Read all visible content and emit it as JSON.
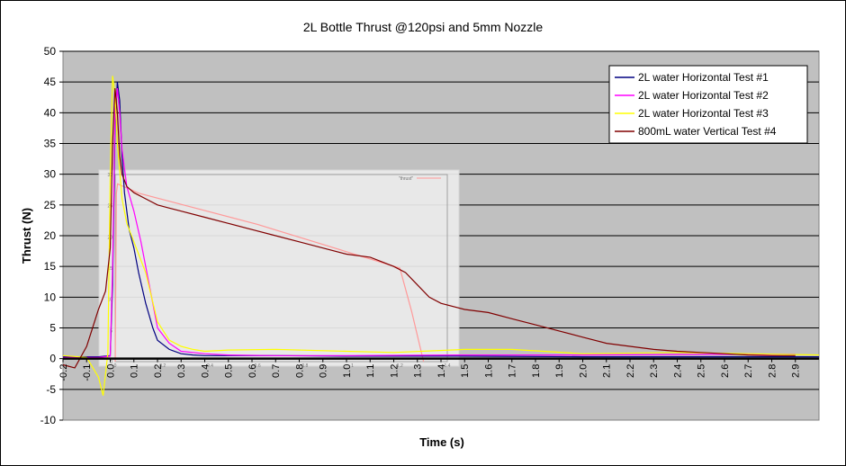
{
  "chart_data": {
    "type": "line",
    "title": "2L Bottle Thrust @120psi and 5mm Nozzle",
    "xlabel": "Time (s)",
    "ylabel": "Thrust (N)",
    "xlim": [
      -0.2,
      3.0
    ],
    "ylim": [
      -10,
      50
    ],
    "x_ticks": [
      -0.2,
      -0.1,
      0.0,
      0.1,
      0.2,
      0.3,
      0.4,
      0.5,
      0.6,
      0.7,
      0.8,
      0.9,
      1.0,
      1.1,
      1.2,
      1.3,
      1.4,
      1.5,
      1.6,
      1.7,
      1.8,
      1.9,
      2.0,
      2.1,
      2.2,
      2.3,
      2.4,
      2.5,
      2.6,
      2.7,
      2.8,
      2.9
    ],
    "x_tick_labels": [
      "-0.2",
      "-0.1",
      "0.0",
      "0.1",
      "0.2",
      "0.3",
      "0.4",
      "0.5",
      "0.6",
      "0.7",
      "0.8",
      "0.9",
      "1.0",
      "1.1",
      "1.2",
      "1.3",
      "1.4",
      "1.5",
      "1.6",
      "1.7",
      "1.8",
      "1.9",
      "2.0",
      "2.1",
      "2.2",
      "2.3",
      "2.4",
      "2.5",
      "2.6",
      "2.7",
      "2.8",
      "2.9"
    ],
    "y_ticks": [
      -10,
      -5,
      0,
      5,
      10,
      15,
      20,
      25,
      30,
      35,
      40,
      45,
      50
    ],
    "y_tick_labels": [
      "-10",
      "-5",
      "0",
      "5",
      "10",
      "15",
      "20",
      "25",
      "30",
      "35",
      "40",
      "45",
      "50"
    ],
    "grid": "horizontal",
    "legend_position": "top-right",
    "background_color": "#c0c0c0",
    "series": [
      {
        "name": "2L water Horizontal Test #1",
        "color": "#000080",
        "x": [
          -0.2,
          -0.05,
          0.0,
          0.01,
          0.02,
          0.03,
          0.04,
          0.05,
          0.06,
          0.08,
          0.1,
          0.12,
          0.15,
          0.18,
          0.2,
          0.25,
          0.3,
          0.35,
          0.4,
          0.5,
          0.7,
          1.0,
          1.5,
          2.0,
          2.5,
          3.0
        ],
        "y": [
          0.3,
          0.3,
          0.5,
          12,
          38,
          45,
          42,
          33,
          27,
          21,
          18,
          14,
          9,
          5,
          3,
          1.5,
          0.8,
          0.6,
          0.5,
          0.5,
          0.5,
          0.4,
          0.4,
          0.3,
          0.3,
          0.3
        ]
      },
      {
        "name": "2L water Horizontal Test #2",
        "color": "#ff00ff",
        "x": [
          -0.2,
          -0.05,
          0.0,
          0.01,
          0.02,
          0.03,
          0.04,
          0.05,
          0.07,
          0.1,
          0.13,
          0.15,
          0.18,
          0.2,
          0.25,
          0.3,
          0.4,
          0.5,
          0.7,
          1.0,
          1.5,
          2.0,
          2.5,
          2.9
        ],
        "y": [
          0.2,
          0.2,
          0.4,
          15,
          40,
          44,
          40,
          34,
          28,
          24,
          19,
          15,
          9,
          5,
          2.5,
          1.2,
          0.8,
          0.6,
          0.5,
          0.5,
          0.6,
          0.6,
          0.7,
          0.7
        ]
      },
      {
        "name": "2L water Horizontal Test #3",
        "color": "#ffff00",
        "x": [
          -0.2,
          -0.1,
          -0.05,
          -0.03,
          -0.01,
          0.0,
          0.01,
          0.02,
          0.03,
          0.05,
          0.07,
          0.1,
          0.13,
          0.15,
          0.2,
          0.25,
          0.3,
          0.35,
          0.4,
          0.5,
          0.7,
          1.0,
          1.2,
          1.5,
          1.7,
          2.0,
          2.4,
          2.7,
          3.0
        ],
        "y": [
          0.5,
          0.2,
          -3,
          -6,
          1,
          30,
          46,
          43,
          35,
          26,
          22,
          19,
          16,
          14,
          6,
          3,
          2,
          1.5,
          1.2,
          1.4,
          1.5,
          1.2,
          1.0,
          1.5,
          1.5,
          0.8,
          1.0,
          0.8,
          0.6
        ]
      },
      {
        "name": "800mL water Vertical Test #4",
        "color": "#800000",
        "x": [
          -0.2,
          -0.15,
          -0.1,
          -0.05,
          -0.02,
          0.0,
          0.01,
          0.02,
          0.03,
          0.04,
          0.05,
          0.07,
          0.1,
          0.15,
          0.2,
          0.25,
          0.3,
          0.4,
          0.5,
          0.6,
          0.7,
          0.8,
          0.9,
          1.0,
          1.1,
          1.2,
          1.25,
          1.3,
          1.35,
          1.4,
          1.5,
          1.6,
          1.7,
          1.8,
          1.9,
          2.0,
          2.1,
          2.2,
          2.3,
          2.4,
          2.5,
          2.6,
          2.7,
          2.8,
          2.9
        ],
        "y": [
          -1,
          -1.5,
          2,
          8,
          11,
          18,
          35,
          44,
          40,
          33,
          30,
          28,
          27,
          26,
          25,
          24.5,
          24,
          23,
          22,
          21,
          20,
          19,
          18,
          17,
          16.5,
          15,
          14,
          12,
          10,
          9,
          8,
          7.5,
          6.5,
          5.5,
          4.5,
          3.5,
          2.5,
          2.0,
          1.5,
          1.2,
          1.0,
          0.8,
          0.6,
          0.5,
          0.5
        ]
      }
    ],
    "inset": {
      "legend_label": "\"thrust\"",
      "x_tick_labels": [
        "0",
        "0.2",
        "0.4",
        "0.6",
        "0.8",
        "1",
        "1.2",
        "1.4"
      ],
      "y_tick_labels": [
        "0",
        "5",
        "10",
        "15",
        "20",
        "25",
        "30"
      ],
      "curve_color": "#ff9999",
      "x": [
        0.0,
        0.005,
        0.01,
        0.1,
        0.3,
        0.6,
        0.9,
        1.2,
        1.25,
        1.3
      ],
      "y": [
        0,
        27,
        28.5,
        27,
        25,
        22,
        18.5,
        15,
        8,
        0
      ]
    }
  }
}
